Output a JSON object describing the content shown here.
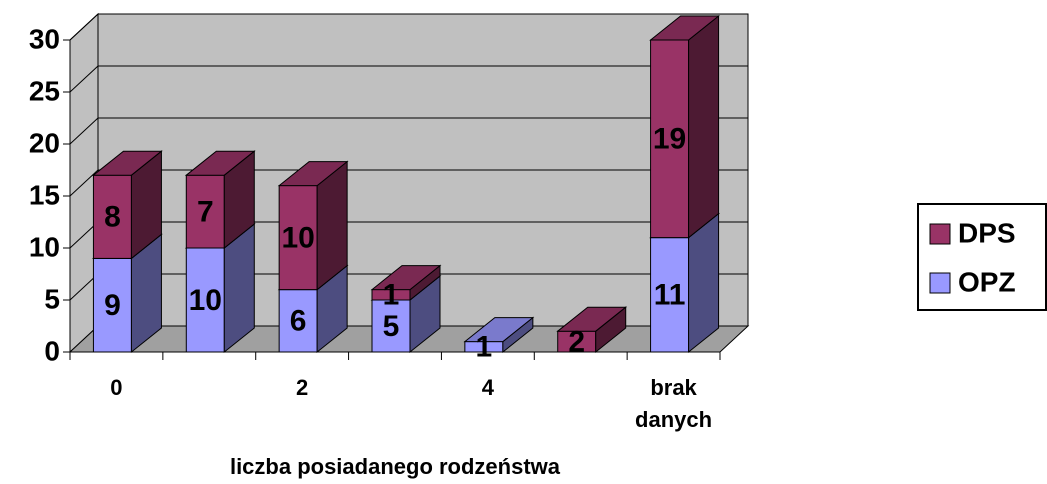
{
  "chart_data": {
    "type": "bar3d_stacked",
    "x_label": "liczba posiadanego rodzeństwa",
    "categories": [
      "0",
      null,
      "2",
      null,
      "4",
      null,
      "brak danych"
    ],
    "series": [
      {
        "name": "OPZ",
        "color": "#9999ff",
        "values": [
          9,
          10,
          6,
          5,
          1,
          null,
          11
        ]
      },
      {
        "name": "DPS",
        "color": "#993366",
        "values": [
          8,
          7,
          10,
          1,
          null,
          2,
          19
        ]
      }
    ],
    "ylim": [
      0,
      30
    ],
    "yticks": [
      0,
      5,
      10,
      15,
      20,
      25,
      30
    ],
    "grid": true,
    "legend": "right"
  }
}
